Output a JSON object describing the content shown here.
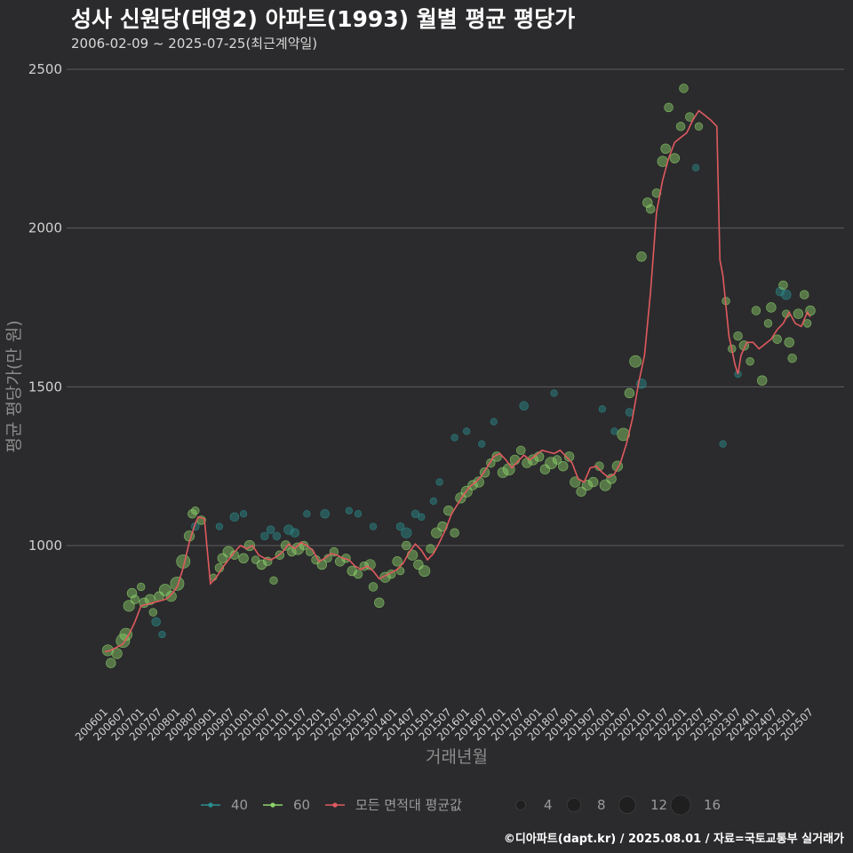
{
  "chart_data": {
    "type": "scatter",
    "title": "성사 신원당(태영2) 아파트(1993) 월별 평균 평당가",
    "subtitle": "2006-02-09 ~ 2025-07-25(최근계약일)",
    "xlabel": "거래년월",
    "ylabel": "평균 평당가(만 원)",
    "caption": "©디아파트(dapt.kr) / 2025.08.01 / 자료=국토교통부 실거래가",
    "ylim": [
      500,
      2500
    ],
    "yticks": [
      1000,
      1500,
      2000,
      2500
    ],
    "xticks": [
      "200601",
      "200607",
      "200701",
      "200707",
      "200801",
      "200807",
      "200901",
      "200907",
      "201001",
      "201007",
      "201101",
      "201107",
      "201201",
      "201207",
      "201301",
      "201307",
      "201401",
      "201407",
      "201501",
      "201507",
      "201601",
      "201607",
      "201701",
      "201707",
      "201801",
      "201807",
      "201901",
      "201907",
      "202001",
      "202007",
      "202101",
      "202107",
      "202201",
      "202207",
      "202301",
      "202307",
      "202401",
      "202407",
      "202501",
      "202507"
    ],
    "grid": true,
    "colors": {
      "s40": "#2a8f8f",
      "s60": "#8ed36b",
      "avg": "#e05a5e"
    },
    "legend": {
      "series": [
        {
          "key": "s40",
          "label": "40"
        },
        {
          "key": "s60",
          "label": "60"
        },
        {
          "key": "avg",
          "label": "모든 면적대 평균값"
        }
      ],
      "sizes": [
        {
          "n": 4,
          "label": "4"
        },
        {
          "n": 8,
          "label": "8"
        },
        {
          "n": 12,
          "label": "12"
        },
        {
          "n": 16,
          "label": "16"
        }
      ]
    },
    "avg_line": [
      [
        "2006-01",
        665
      ],
      [
        "2006-03",
        670
      ],
      [
        "2006-05",
        680
      ],
      [
        "2006-07",
        690
      ],
      [
        "2006-09",
        720
      ],
      [
        "2006-11",
        760
      ],
      [
        "2007-01",
        810
      ],
      [
        "2007-03",
        815
      ],
      [
        "2007-05",
        820
      ],
      [
        "2007-07",
        825
      ],
      [
        "2007-09",
        830
      ],
      [
        "2007-11",
        845
      ],
      [
        "2008-01",
        870
      ],
      [
        "2008-03",
        930
      ],
      [
        "2008-05",
        1010
      ],
      [
        "2008-07",
        1070
      ],
      [
        "2008-08",
        1090
      ],
      [
        "2008-10",
        1085
      ],
      [
        "2008-12",
        880
      ],
      [
        "2009-02",
        900
      ],
      [
        "2009-04",
        930
      ],
      [
        "2009-06",
        955
      ],
      [
        "2009-08",
        980
      ],
      [
        "2009-10",
        1000
      ],
      [
        "2009-12",
        990
      ],
      [
        "2010-02",
        1000
      ],
      [
        "2010-04",
        970
      ],
      [
        "2010-06",
        960
      ],
      [
        "2010-08",
        955
      ],
      [
        "2010-10",
        965
      ],
      [
        "2010-12",
        980
      ],
      [
        "2011-02",
        1005
      ],
      [
        "2011-04",
        990
      ],
      [
        "2011-06",
        1010
      ],
      [
        "2011-08",
        1000
      ],
      [
        "2011-10",
        985
      ],
      [
        "2011-12",
        950
      ],
      [
        "2012-02",
        960
      ],
      [
        "2012-04",
        975
      ],
      [
        "2012-06",
        970
      ],
      [
        "2012-08",
        960
      ],
      [
        "2012-10",
        955
      ],
      [
        "2012-12",
        935
      ],
      [
        "2013-02",
        925
      ],
      [
        "2013-04",
        935
      ],
      [
        "2013-06",
        920
      ],
      [
        "2013-08",
        895
      ],
      [
        "2013-10",
        905
      ],
      [
        "2013-12",
        915
      ],
      [
        "2014-02",
        925
      ],
      [
        "2014-04",
        945
      ],
      [
        "2014-06",
        980
      ],
      [
        "2014-08",
        1005
      ],
      [
        "2014-10",
        985
      ],
      [
        "2014-12",
        955
      ],
      [
        "2015-02",
        975
      ],
      [
        "2015-04",
        1010
      ],
      [
        "2015-06",
        1050
      ],
      [
        "2015-08",
        1100
      ],
      [
        "2015-10",
        1130
      ],
      [
        "2015-12",
        1160
      ],
      [
        "2016-02",
        1185
      ],
      [
        "2016-04",
        1200
      ],
      [
        "2016-06",
        1220
      ],
      [
        "2016-08",
        1250
      ],
      [
        "2016-10",
        1280
      ],
      [
        "2016-12",
        1290
      ],
      [
        "2017-02",
        1270
      ],
      [
        "2017-04",
        1245
      ],
      [
        "2017-06",
        1265
      ],
      [
        "2017-08",
        1285
      ],
      [
        "2017-10",
        1270
      ],
      [
        "2017-12",
        1285
      ],
      [
        "2018-02",
        1300
      ],
      [
        "2018-04",
        1295
      ],
      [
        "2018-06",
        1290
      ],
      [
        "2018-08",
        1300
      ],
      [
        "2018-10",
        1280
      ],
      [
        "2018-12",
        1260
      ],
      [
        "2019-02",
        1210
      ],
      [
        "2019-04",
        1200
      ],
      [
        "2019-06",
        1245
      ],
      [
        "2019-08",
        1250
      ],
      [
        "2019-10",
        1230
      ],
      [
        "2019-12",
        1215
      ],
      [
        "2020-02",
        1225
      ],
      [
        "2020-04",
        1260
      ],
      [
        "2020-06",
        1320
      ],
      [
        "2020-08",
        1400
      ],
      [
        "2020-10",
        1510
      ],
      [
        "2020-12",
        1600
      ],
      [
        "2021-02",
        1800
      ],
      [
        "2021-04",
        2050
      ],
      [
        "2021-06",
        2150
      ],
      [
        "2021-08",
        2220
      ],
      [
        "2021-10",
        2270
      ],
      [
        "2021-12",
        2285
      ],
      [
        "2022-02",
        2300
      ],
      [
        "2022-04",
        2340
      ],
      [
        "2022-06",
        2370
      ],
      [
        "2022-08",
        2355
      ],
      [
        "2022-10",
        2340
      ],
      [
        "2022-12",
        2320
      ],
      [
        "2023-01",
        1900
      ],
      [
        "2023-02",
        1850
      ],
      [
        "2023-04",
        1660
      ],
      [
        "2023-06",
        1570
      ],
      [
        "2023-07",
        1540
      ],
      [
        "2023-08",
        1600
      ],
      [
        "2023-10",
        1640
      ],
      [
        "2023-12",
        1640
      ],
      [
        "2024-02",
        1620
      ],
      [
        "2024-04",
        1635
      ],
      [
        "2024-06",
        1650
      ],
      [
        "2024-08",
        1680
      ],
      [
        "2024-10",
        1700
      ],
      [
        "2024-12",
        1735
      ],
      [
        "2025-02",
        1700
      ],
      [
        "2025-04",
        1690
      ],
      [
        "2025-06",
        1735
      ],
      [
        "2025-07",
        1720
      ]
    ],
    "points_60": [
      [
        "2006-02",
        670,
        8
      ],
      [
        "2006-03",
        630,
        6
      ],
      [
        "2006-05",
        660,
        7
      ],
      [
        "2006-07",
        700,
        12
      ],
      [
        "2006-08",
        720,
        10
      ],
      [
        "2006-09",
        810,
        8
      ],
      [
        "2006-10",
        850,
        6
      ],
      [
        "2006-11",
        830,
        5
      ],
      [
        "2007-01",
        870,
        4
      ],
      [
        "2007-02",
        820,
        6
      ],
      [
        "2007-04",
        830,
        7
      ],
      [
        "2007-05",
        790,
        4
      ],
      [
        "2007-07",
        840,
        6
      ],
      [
        "2007-09",
        860,
        9
      ],
      [
        "2007-11",
        840,
        7
      ],
      [
        "2008-01",
        880,
        12
      ],
      [
        "2008-03",
        950,
        12
      ],
      [
        "2008-05",
        1030,
        7
      ],
      [
        "2008-06",
        1100,
        5
      ],
      [
        "2008-07",
        1110,
        4
      ],
      [
        "2008-09",
        1080,
        5
      ],
      [
        "2009-01",
        900,
        3
      ],
      [
        "2009-03",
        930,
        5
      ],
      [
        "2009-04",
        960,
        6
      ],
      [
        "2009-06",
        980,
        8
      ],
      [
        "2009-08",
        970,
        5
      ],
      [
        "2009-11",
        960,
        6
      ],
      [
        "2010-01",
        1000,
        7
      ],
      [
        "2010-03",
        955,
        4
      ],
      [
        "2010-05",
        940,
        6
      ],
      [
        "2010-07",
        950,
        5
      ],
      [
        "2010-09",
        890,
        4
      ],
      [
        "2010-11",
        970,
        5
      ],
      [
        "2011-01",
        1000,
        6
      ],
      [
        "2011-03",
        980,
        5
      ],
      [
        "2011-05",
        990,
        9
      ],
      [
        "2011-07",
        1000,
        5
      ],
      [
        "2011-09",
        980,
        4
      ],
      [
        "2011-11",
        955,
        5
      ],
      [
        "2012-01",
        940,
        6
      ],
      [
        "2012-03",
        960,
        4
      ],
      [
        "2012-05",
        980,
        5
      ],
      [
        "2012-07",
        950,
        6
      ],
      [
        "2012-09",
        960,
        5
      ],
      [
        "2012-11",
        920,
        6
      ],
      [
        "2013-01",
        910,
        5
      ],
      [
        "2013-03",
        935,
        5
      ],
      [
        "2013-05",
        940,
        7
      ],
      [
        "2013-06",
        870,
        5
      ],
      [
        "2013-08",
        820,
        6
      ],
      [
        "2013-10",
        900,
        7
      ],
      [
        "2013-12",
        910,
        5
      ],
      [
        "2014-02",
        950,
        6
      ],
      [
        "2014-03",
        920,
        4
      ],
      [
        "2014-05",
        1000,
        5
      ],
      [
        "2014-07",
        970,
        7
      ],
      [
        "2014-09",
        940,
        6
      ],
      [
        "2014-11",
        920,
        8
      ],
      [
        "2015-01",
        990,
        5
      ],
      [
        "2015-03",
        1040,
        7
      ],
      [
        "2015-05",
        1060,
        6
      ],
      [
        "2015-07",
        1110,
        6
      ],
      [
        "2015-09",
        1040,
        5
      ],
      [
        "2015-11",
        1150,
        7
      ],
      [
        "2016-01",
        1170,
        8
      ],
      [
        "2016-03",
        1190,
        6
      ],
      [
        "2016-05",
        1200,
        7
      ],
      [
        "2016-07",
        1230,
        6
      ],
      [
        "2016-09",
        1260,
        5
      ],
      [
        "2016-11",
        1280,
        6
      ],
      [
        "2017-01",
        1230,
        7
      ],
      [
        "2017-03",
        1240,
        9
      ],
      [
        "2017-05",
        1270,
        6
      ],
      [
        "2017-07",
        1300,
        5
      ],
      [
        "2017-09",
        1260,
        6
      ],
      [
        "2017-11",
        1270,
        7
      ],
      [
        "2018-01",
        1280,
        6
      ],
      [
        "2018-03",
        1240,
        6
      ],
      [
        "2018-05",
        1260,
        9
      ],
      [
        "2018-07",
        1270,
        5
      ],
      [
        "2018-09",
        1250,
        6
      ],
      [
        "2018-11",
        1280,
        6
      ],
      [
        "2019-01",
        1200,
        7
      ],
      [
        "2019-03",
        1170,
        6
      ],
      [
        "2019-05",
        1190,
        7
      ],
      [
        "2019-07",
        1200,
        6
      ],
      [
        "2019-09",
        1250,
        5
      ],
      [
        "2019-11",
        1190,
        8
      ],
      [
        "2020-01",
        1210,
        6
      ],
      [
        "2020-03",
        1250,
        7
      ],
      [
        "2020-05",
        1350,
        10
      ],
      [
        "2020-07",
        1480,
        6
      ],
      [
        "2020-09",
        1580,
        9
      ],
      [
        "2020-11",
        1910,
        6
      ],
      [
        "2021-01",
        2080,
        6
      ],
      [
        "2021-02",
        2060,
        5
      ],
      [
        "2021-04",
        2110,
        5
      ],
      [
        "2021-06",
        2210,
        7
      ],
      [
        "2021-07",
        2250,
        6
      ],
      [
        "2021-08",
        2380,
        5
      ],
      [
        "2021-10",
        2220,
        6
      ],
      [
        "2021-12",
        2320,
        5
      ],
      [
        "2022-01",
        2440,
        5
      ],
      [
        "2022-03",
        2350,
        5
      ],
      [
        "2022-06",
        2320,
        4
      ],
      [
        "2023-03",
        1770,
        4
      ],
      [
        "2023-05",
        1620,
        4
      ],
      [
        "2023-07",
        1660,
        5
      ],
      [
        "2023-09",
        1630,
        6
      ],
      [
        "2023-11",
        1580,
        4
      ],
      [
        "2024-01",
        1740,
        5
      ],
      [
        "2024-03",
        1520,
        6
      ],
      [
        "2024-05",
        1700,
        4
      ],
      [
        "2024-06",
        1750,
        6
      ],
      [
        "2024-08",
        1650,
        5
      ],
      [
        "2024-10",
        1820,
        5
      ],
      [
        "2024-11",
        1730,
        4
      ],
      [
        "2024-12",
        1640,
        6
      ],
      [
        "2025-01",
        1590,
        5
      ],
      [
        "2025-03",
        1730,
        6
      ],
      [
        "2025-05",
        1790,
        5
      ],
      [
        "2025-06",
        1700,
        4
      ],
      [
        "2025-07",
        1740,
        6
      ]
    ],
    "points_40": [
      [
        "2007-06",
        760,
        5
      ],
      [
        "2007-08",
        720,
        3
      ],
      [
        "2008-07",
        1060,
        4
      ],
      [
        "2009-03",
        1060,
        3
      ],
      [
        "2009-08",
        1090,
        5
      ],
      [
        "2009-11",
        1100,
        3
      ],
      [
        "2010-06",
        1030,
        4
      ],
      [
        "2010-08",
        1050,
        4
      ],
      [
        "2010-10",
        1030,
        4
      ],
      [
        "2011-02",
        1050,
        6
      ],
      [
        "2011-04",
        1040,
        5
      ],
      [
        "2011-08",
        1100,
        3
      ],
      [
        "2012-02",
        1100,
        5
      ],
      [
        "2012-10",
        1110,
        3
      ],
      [
        "2013-01",
        1100,
        3
      ],
      [
        "2013-06",
        1060,
        3
      ],
      [
        "2014-03",
        1060,
        4
      ],
      [
        "2014-05",
        1040,
        7
      ],
      [
        "2014-08",
        1100,
        4
      ],
      [
        "2014-10",
        1090,
        3
      ],
      [
        "2015-02",
        1140,
        3
      ],
      [
        "2015-04",
        1200,
        3
      ],
      [
        "2015-09",
        1340,
        3
      ],
      [
        "2016-01",
        1360,
        3
      ],
      [
        "2016-06",
        1320,
        3
      ],
      [
        "2016-10",
        1390,
        3
      ],
      [
        "2017-08",
        1440,
        5
      ],
      [
        "2018-06",
        1480,
        3
      ],
      [
        "2019-10",
        1430,
        3
      ],
      [
        "2020-02",
        1360,
        3
      ],
      [
        "2020-07",
        1420,
        4
      ],
      [
        "2020-11",
        1510,
        6
      ],
      [
        "2022-05",
        2190,
        3
      ],
      [
        "2023-02",
        1320,
        3
      ],
      [
        "2023-07",
        1540,
        3
      ],
      [
        "2024-09",
        1800,
        5
      ],
      [
        "2024-11",
        1790,
        6
      ]
    ]
  }
}
